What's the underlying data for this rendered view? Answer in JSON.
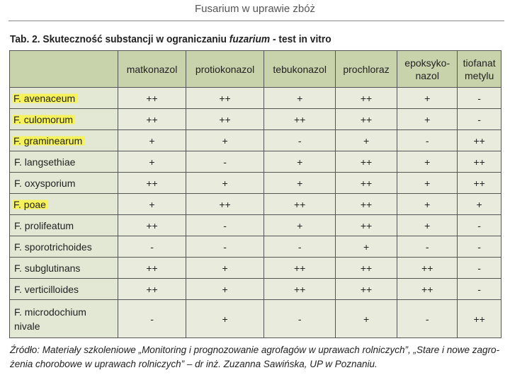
{
  "running_header": "Fusarium w uprawie zbóż",
  "table_title": {
    "prefix": "Tab. 2. Skuteczność substancji w ograniczaniu ",
    "italic": "fuzarium",
    "suffix": " - test in vitro"
  },
  "columns": [
    "matkonazol",
    "protiokonazol",
    "tebukonazol",
    "prochloraz",
    "epoksyko-\nnazol",
    "tiofanat\nmetylu"
  ],
  "rows": [
    {
      "name": "F. avenaceum",
      "highlighted": true,
      "values": [
        "++",
        "++",
        "+",
        "++",
        "+",
        "-"
      ]
    },
    {
      "name": "F. culomorum",
      "highlighted": true,
      "values": [
        "++",
        "++",
        "++",
        "++",
        "+",
        "-"
      ]
    },
    {
      "name": "F. graminearum",
      "highlighted": true,
      "values": [
        "+",
        "+",
        "-",
        "+",
        "-",
        "++"
      ]
    },
    {
      "name": "F. langsethiae",
      "highlighted": false,
      "values": [
        "+",
        "-",
        "+",
        "++",
        "+",
        "++"
      ]
    },
    {
      "name": "F. oxysporium",
      "highlighted": false,
      "values": [
        "++",
        "+",
        "+",
        "++",
        "+",
        "++"
      ]
    },
    {
      "name": "F. poae",
      "highlighted": true,
      "values": [
        "+",
        "++",
        "++",
        "++",
        "+",
        "+"
      ]
    },
    {
      "name": "F. prolifeatum",
      "highlighted": false,
      "values": [
        "++",
        "-",
        "+",
        "++",
        "+",
        "-"
      ]
    },
    {
      "name": "F. sporotrichoides",
      "highlighted": false,
      "values": [
        "-",
        "-",
        "-",
        "+",
        "-",
        "-"
      ]
    },
    {
      "name": "F. subglutinans",
      "highlighted": false,
      "values": [
        "++",
        "+",
        "++",
        "++",
        "++",
        "-"
      ]
    },
    {
      "name": "F. verticilloides",
      "highlighted": false,
      "values": [
        "++",
        "+",
        "++",
        "++",
        "++",
        "-"
      ]
    },
    {
      "name": "F. microdochium\nnivale",
      "highlighted": false,
      "values": [
        "-",
        "+",
        "-",
        "+",
        "-",
        "++"
      ]
    }
  ],
  "caption": "Źródło: Materiały szkoleniowe „Monitoring i prognozowanie agrofagów w uprawach rolniczych”, „Stare i nowe zagro-\nżenia chorobowe w uprawach rolniczych” – dr inż. Zuzanna Sawińska, UP w Poznaniu.",
  "colors": {
    "header_bg": "#c8d2ab",
    "cell_bg": "#e9ebdd",
    "highlight": "#f6f25a"
  }
}
